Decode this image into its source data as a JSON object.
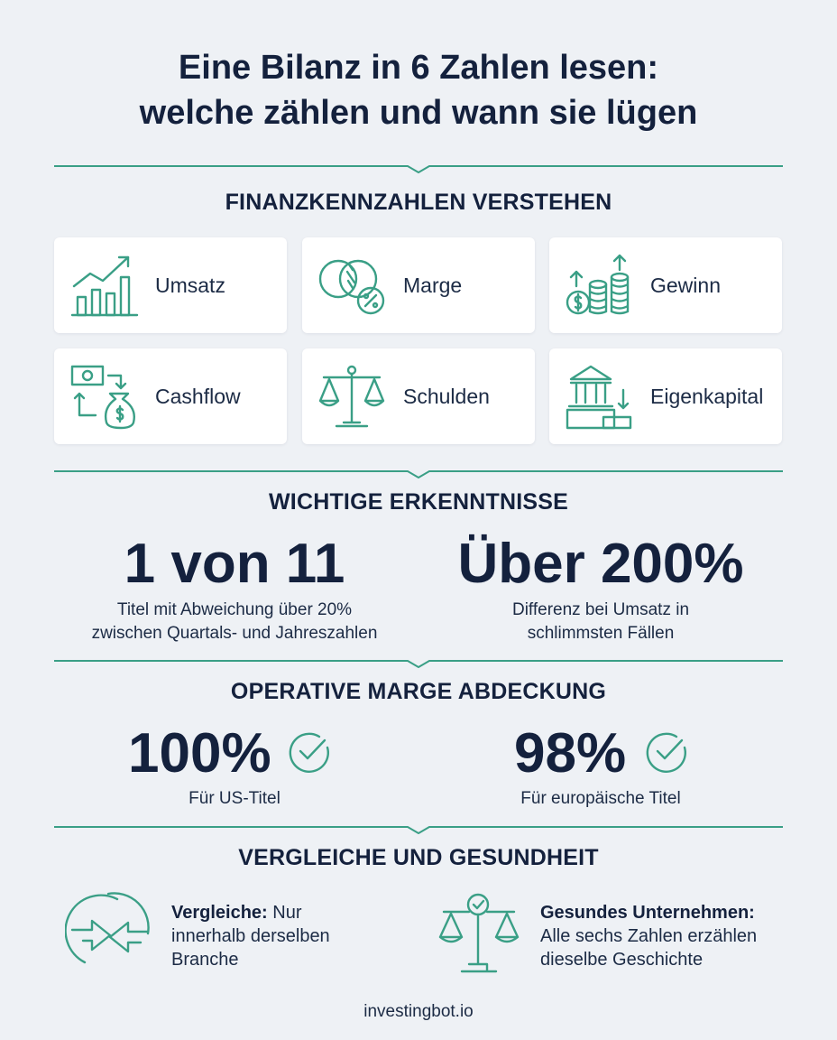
{
  "title": {
    "line1": "Eine Bilanz in 6 Zahlen lesen:",
    "line2": "welche zählen und wann sie lügen"
  },
  "sections": {
    "metrics": "FINANZKENNZAHLEN VERSTEHEN",
    "insights": "WICHTIGE ERKENNTNISSE",
    "coverage": "OPERATIVE MARGE ABDECKUNG",
    "comparison": "VERGLEICHE UND GESUNDHEIT"
  },
  "metrics": [
    {
      "label": "Umsatz",
      "icon": "bar-chart-up-icon"
    },
    {
      "label": "Marge",
      "icon": "venn-percent-icon"
    },
    {
      "label": "Gewinn",
      "icon": "coins-growth-icon"
    },
    {
      "label": "Cashflow",
      "icon": "cash-flow-icon"
    },
    {
      "label": "Schulden",
      "icon": "scales-icon"
    },
    {
      "label": "Eigenkapital",
      "icon": "bank-building-icon"
    }
  ],
  "insights": [
    {
      "value": "1 von 11",
      "desc_line1": "Titel mit Abweichung über 20%",
      "desc_line2": "zwischen Quartals- und Jahreszahlen"
    },
    {
      "value": "Über 200%",
      "desc_line1": "Differenz bei Umsatz in",
      "desc_line2": "schlimmsten Fällen"
    }
  ],
  "coverage": [
    {
      "value": "100%",
      "desc": "Für US-Titel",
      "icon": "check-circle-icon"
    },
    {
      "value": "98%",
      "desc": "Für europäische Titel",
      "icon": "check-circle-icon"
    }
  ],
  "comparison": [
    {
      "bold": "Vergleiche:",
      "text1": " Nur",
      "text2": "innerhalb derselben",
      "text3": "Branche",
      "icon": "compare-arrows-icon"
    },
    {
      "bold": "Gesundes Unternehmen:",
      "text1": "Alle sechs Zahlen erzählen",
      "text2": "dieselbe Geschichte",
      "icon": "balance-check-icon"
    }
  ],
  "footer": "investingbot.io",
  "colors": {
    "accent": "#3a9f86",
    "text": "#14213d",
    "background": "#eef1f5",
    "card": "#ffffff"
  }
}
